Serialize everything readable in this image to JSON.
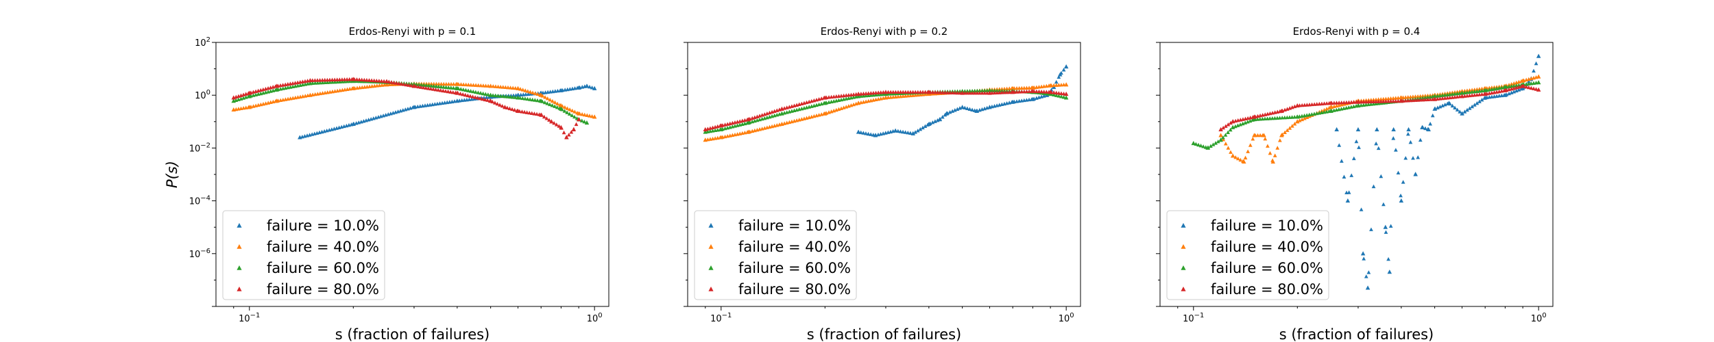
{
  "figure": {
    "ylabel": "P(s)",
    "xlabel": "s (fraction of failures)"
  },
  "chart_data": [
    {
      "type": "scatter",
      "title": "Erdos-Renyi with p = 0.1",
      "xlabel": "s (fraction of failures)",
      "ylabel": "P(s)",
      "xscale": "log",
      "yscale": "log",
      "xlim": [
        0.08,
        1.1
      ],
      "ylim": [
        1e-08,
        100
      ],
      "yticks": [
        "10^-6",
        "10^-4",
        "10^-2",
        "10^0",
        "10^2"
      ],
      "xticks": [
        "10^-1",
        "10^0"
      ],
      "legend_position": "lower-left",
      "series": [
        {
          "name": "failure = 10.0%",
          "color": "#1f77b4",
          "marker": "triangle",
          "x": [
            0.14,
            0.2,
            0.3,
            0.4,
            0.5,
            0.6,
            0.7,
            0.8,
            0.9,
            0.95,
            1.0
          ],
          "y": [
            0.025,
            0.08,
            0.35,
            0.6,
            0.85,
            1.0,
            1.2,
            1.5,
            1.9,
            2.2,
            1.8
          ]
        },
        {
          "name": "failure = 40.0%",
          "color": "#ff7f0e",
          "marker": "triangle",
          "x": [
            0.09,
            0.1,
            0.12,
            0.15,
            0.2,
            0.25,
            0.3,
            0.4,
            0.5,
            0.6,
            0.7,
            0.8,
            0.9,
            1.0
          ],
          "y": [
            0.28,
            0.35,
            0.6,
            1.0,
            1.8,
            2.5,
            2.7,
            2.6,
            2.2,
            1.8,
            1.0,
            0.4,
            0.2,
            0.15
          ]
        },
        {
          "name": "failure = 60.0%",
          "color": "#2ca02c",
          "marker": "triangle",
          "x": [
            0.09,
            0.1,
            0.12,
            0.15,
            0.2,
            0.25,
            0.3,
            0.4,
            0.5,
            0.6,
            0.7,
            0.8,
            0.9,
            0.95
          ],
          "y": [
            0.6,
            0.9,
            1.6,
            2.8,
            3.4,
            3.1,
            2.6,
            1.8,
            1.0,
            0.8,
            0.6,
            0.3,
            0.12,
            0.09
          ]
        },
        {
          "name": "failure = 80.0%",
          "color": "#d62728",
          "marker": "triangle",
          "x": [
            0.09,
            0.1,
            0.12,
            0.15,
            0.2,
            0.25,
            0.3,
            0.4,
            0.5,
            0.55,
            0.6,
            0.7,
            0.75,
            0.8,
            0.83,
            0.87,
            0.9
          ],
          "y": [
            0.8,
            1.2,
            2.2,
            3.6,
            4.0,
            3.3,
            2.2,
            1.2,
            0.6,
            0.35,
            0.25,
            0.18,
            0.1,
            0.06,
            0.025,
            0.05,
            0.12
          ]
        }
      ]
    },
    {
      "type": "scatter",
      "title": "Erdos-Renyi with p = 0.2",
      "xlabel": "s (fraction of failures)",
      "ylabel": "",
      "xscale": "log",
      "yscale": "log",
      "xlim": [
        0.08,
        1.1
      ],
      "ylim": [
        1e-08,
        100
      ],
      "xticks": [
        "10^-1",
        "10^0"
      ],
      "legend_position": "lower-left",
      "series": [
        {
          "name": "failure = 10.0%",
          "color": "#1f77b4",
          "marker": "triangle",
          "x": [
            0.25,
            0.28,
            0.32,
            0.36,
            0.4,
            0.43,
            0.45,
            0.5,
            0.55,
            0.6,
            0.7,
            0.8,
            0.88,
            0.92,
            0.96,
            1.0
          ],
          "y": [
            0.04,
            0.03,
            0.045,
            0.035,
            0.08,
            0.12,
            0.2,
            0.35,
            0.25,
            0.35,
            0.55,
            0.7,
            1.0,
            2.0,
            6.0,
            12.0
          ]
        },
        {
          "name": "failure = 40.0%",
          "color": "#ff7f0e",
          "marker": "triangle",
          "x": [
            0.09,
            0.1,
            0.12,
            0.15,
            0.2,
            0.25,
            0.3,
            0.4,
            0.5,
            0.6,
            0.7,
            0.8,
            0.9,
            1.0
          ],
          "y": [
            0.02,
            0.025,
            0.04,
            0.08,
            0.2,
            0.5,
            0.8,
            1.1,
            1.3,
            1.6,
            1.8,
            1.9,
            2.3,
            2.5
          ]
        },
        {
          "name": "failure = 60.0%",
          "color": "#2ca02c",
          "marker": "triangle",
          "x": [
            0.09,
            0.1,
            0.12,
            0.15,
            0.2,
            0.25,
            0.3,
            0.4,
            0.5,
            0.6,
            0.7,
            0.8,
            0.9,
            1.0
          ],
          "y": [
            0.04,
            0.05,
            0.09,
            0.2,
            0.5,
            0.9,
            1.1,
            1.3,
            1.4,
            1.5,
            1.4,
            1.3,
            1.1,
            0.8
          ]
        },
        {
          "name": "failure = 80.0%",
          "color": "#d62728",
          "marker": "triangle",
          "x": [
            0.09,
            0.1,
            0.12,
            0.15,
            0.2,
            0.25,
            0.3,
            0.4,
            0.5,
            0.6,
            0.7,
            0.8,
            0.9,
            1.0
          ],
          "y": [
            0.05,
            0.07,
            0.12,
            0.3,
            0.8,
            1.1,
            1.3,
            1.3,
            1.2,
            1.2,
            1.3,
            1.4,
            1.3,
            1.1
          ]
        }
      ]
    },
    {
      "type": "scatter",
      "title": "Erdos-Renyi with p = 0.4",
      "xlabel": "s (fraction of failures)",
      "ylabel": "",
      "xscale": "log",
      "yscale": "log",
      "xlim": [
        0.08,
        1.1
      ],
      "ylim": [
        1e-08,
        100
      ],
      "xticks": [
        "10^-1",
        "10^0"
      ],
      "legend_position": "lower-left",
      "series": [
        {
          "name": "failure = 10.0%",
          "color": "#1f77b4",
          "marker": "triangle",
          "x": [
            0.26,
            0.28,
            0.3,
            0.31,
            0.32,
            0.34,
            0.36,
            0.37,
            0.38,
            0.4,
            0.42,
            0.44,
            0.46,
            0.48,
            0.5,
            0.55,
            0.6,
            0.7,
            0.8,
            0.9,
            0.95,
            1.0
          ],
          "y": [
            0.05,
            0.0001,
            0.05,
            1e-06,
            5e-08,
            0.05,
            1e-05,
            2e-07,
            0.05,
            0.0001,
            0.05,
            0.001,
            0.06,
            0.05,
            0.3,
            0.5,
            0.2,
            0.8,
            1.0,
            1.8,
            4.0,
            30.0
          ]
        },
        {
          "name": "failure = 40.0%",
          "color": "#ff7f0e",
          "marker": "triangle",
          "x": [
            0.12,
            0.13,
            0.14,
            0.15,
            0.16,
            0.17,
            0.18,
            0.2,
            0.25,
            0.3,
            0.4,
            0.5,
            0.6,
            0.7,
            0.8,
            0.9,
            1.0
          ],
          "y": [
            0.03,
            0.005,
            0.003,
            0.03,
            0.03,
            0.003,
            0.03,
            0.1,
            0.35,
            0.6,
            0.8,
            1.0,
            1.4,
            1.8,
            2.2,
            3.5,
            5.0
          ]
        },
        {
          "name": "failure = 60.0%",
          "color": "#2ca02c",
          "marker": "triangle",
          "x": [
            0.1,
            0.11,
            0.12,
            0.13,
            0.15,
            0.2,
            0.25,
            0.3,
            0.4,
            0.5,
            0.6,
            0.7,
            0.8,
            0.9,
            1.0
          ],
          "y": [
            0.015,
            0.01,
            0.02,
            0.06,
            0.12,
            0.15,
            0.25,
            0.4,
            0.6,
            0.9,
            1.2,
            1.5,
            2.0,
            2.5,
            3.0
          ]
        },
        {
          "name": "failure = 80.0%",
          "color": "#d62728",
          "marker": "triangle",
          "x": [
            0.12,
            0.13,
            0.15,
            0.18,
            0.2,
            0.25,
            0.3,
            0.4,
            0.5,
            0.6,
            0.7,
            0.8,
            0.9,
            1.0
          ],
          "y": [
            0.05,
            0.1,
            0.15,
            0.25,
            0.4,
            0.5,
            0.55,
            0.6,
            0.7,
            0.9,
            1.1,
            1.5,
            2.2,
            1.6
          ]
        }
      ]
    }
  ]
}
